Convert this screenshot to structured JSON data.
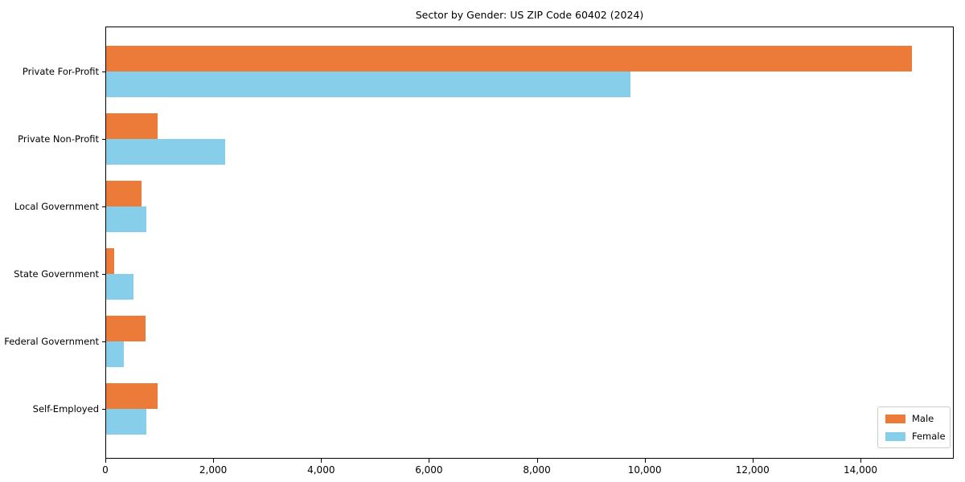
{
  "figure": {
    "title": "Sector by Gender: US ZIP Code 60402 (2024)"
  },
  "chart_data": {
    "type": "bar",
    "orientation": "horizontal",
    "title": "Sector by Gender: US ZIP Code 60402 (2024)",
    "categories": [
      "Private For-Profit",
      "Private Non-Profit",
      "Local Government",
      "State Government",
      "Federal Government",
      "Self-Employed"
    ],
    "series": [
      {
        "name": "Male",
        "color": "#ec7a39",
        "values": [
          14940,
          960,
          650,
          155,
          725,
          955
        ]
      },
      {
        "name": "Female",
        "color": "#87ceeb",
        "values": [
          9725,
          2210,
          745,
          510,
          320,
          745
        ]
      }
    ],
    "xlabel": "",
    "ylabel": "",
    "xlim": [
      0,
      15700
    ],
    "xticks": {
      "values": [
        0,
        2000,
        4000,
        6000,
        8000,
        10000,
        12000,
        14000
      ],
      "labels": [
        "0",
        "2,000",
        "4,000",
        "6,000",
        "8,000",
        "10,000",
        "12,000",
        "14,000"
      ]
    },
    "grid": false,
    "legend": {
      "position": "lower right",
      "entries": [
        "Male",
        "Female"
      ]
    }
  },
  "colors": {
    "male_bar": "#ec7a39",
    "female_bar": "#87ceeb",
    "spine": "#000000",
    "legend_border": "#cccccc",
    "background": "#ffffff"
  }
}
